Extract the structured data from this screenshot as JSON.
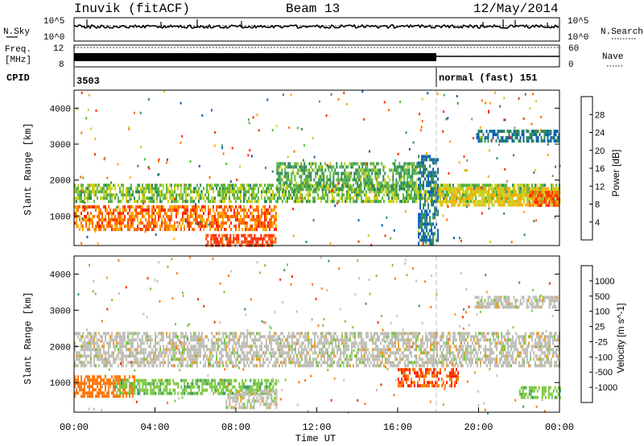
{
  "header": {
    "station": "Inuvik (fitACF)",
    "beam": "Beam 13",
    "date": "12/May/2014"
  },
  "ancillary": {
    "nsky_label": "N.Sky",
    "nsky_ticks": [
      "10^5",
      "10^0"
    ],
    "nsearch_label": "N.Search",
    "nsearch_ticks": [
      "10^5",
      "10^0"
    ],
    "freq_label_1": "Freq.",
    "freq_label_2": "[MHz]",
    "freq_ticks": [
      "12",
      "8"
    ],
    "nave_label": "Nave",
    "nave_ticks": [
      "60",
      "0"
    ],
    "cpid_label": "CPID",
    "cpid_segments": [
      {
        "start": 0,
        "end": 18,
        "label": "3503"
      },
      {
        "start": 18,
        "end": 24,
        "label": "normal (fast) 151"
      }
    ]
  },
  "chart_data": [
    {
      "type": "heatmap",
      "panel": "power",
      "ylabel": "Slant Range [km]",
      "xlim": [
        0,
        24
      ],
      "ylim": [
        180,
        4500
      ],
      "yticks": [
        1000,
        2000,
        3000,
        4000
      ],
      "colorbar": {
        "label": "Power [dB]",
        "ticks": [
          "4",
          "8",
          "12",
          "16",
          "20",
          "24",
          "28"
        ],
        "colors": [
          "#0000ff",
          "#0a5fb4",
          "#2e8b57",
          "#5ab446",
          "#c8d21e",
          "#ffaa00",
          "#ff6e00",
          "#ff2800"
        ],
        "range": [
          0,
          32
        ]
      },
      "bands": [
        {
          "x": [
            0,
            24
          ],
          "y": [
            1400,
            1900
          ],
          "v": 15
        },
        {
          "x": [
            0,
            10
          ],
          "y": [
            600,
            1300
          ],
          "v": 26
        },
        {
          "x": [
            6.5,
            10
          ],
          "y": [
            200,
            500
          ],
          "v": 30
        },
        {
          "x": [
            10,
            17
          ],
          "y": [
            1700,
            2500
          ],
          "v": 13
        },
        {
          "x": [
            17,
            18
          ],
          "y": [
            200,
            2700
          ],
          "v": 8
        },
        {
          "x": [
            18,
            24
          ],
          "y": [
            1300,
            1800
          ],
          "v": 20
        },
        {
          "x": [
            22.5,
            24
          ],
          "y": [
            1300,
            1700
          ],
          "v": 28
        },
        {
          "x": [
            19.8,
            24
          ],
          "y": [
            3100,
            3400
          ],
          "v": 8
        }
      ]
    },
    {
      "type": "heatmap",
      "panel": "velocity",
      "xlabel": "Time UT",
      "ylabel": "Slant Range [km]",
      "xlim": [
        0,
        24
      ],
      "ylim": [
        180,
        4500
      ],
      "xticks": [
        "00:00",
        "04:00",
        "08:00",
        "12:00",
        "16:00",
        "20:00",
        "00:00"
      ],
      "yticks": [
        1000,
        2000,
        3000,
        4000
      ],
      "colorbar": {
        "label": "Velocity [m s^-1]",
        "ticks": [
          "1000",
          "500",
          "100",
          "25",
          "-25",
          "-100",
          "-500",
          "-1000"
        ],
        "colors": [
          "#2846c8",
          "#3c78b4",
          "#3c966e",
          "#78c83c",
          "#c0c0b8",
          "#e6a032",
          "#ff780a",
          "#ff2800",
          "#e60000"
        ]
      },
      "bands": [
        {
          "x": [
            0,
            24
          ],
          "y": [
            1500,
            2400
          ],
          "v": 0
        },
        {
          "x": [
            0,
            3
          ],
          "y": [
            600,
            1200
          ],
          "v": -300
        },
        {
          "x": [
            2,
            10
          ],
          "y": [
            700,
            1100
          ],
          "v": 80
        },
        {
          "x": [
            7.5,
            10
          ],
          "y": [
            300,
            800
          ],
          "v": 0
        },
        {
          "x": [
            16,
            19
          ],
          "y": [
            900,
            1400
          ],
          "v": -500
        },
        {
          "x": [
            19.8,
            24
          ],
          "y": [
            3100,
            3400
          ],
          "v": 0
        },
        {
          "x": [
            22,
            24
          ],
          "y": [
            600,
            900
          ],
          "v": 80
        }
      ]
    }
  ]
}
